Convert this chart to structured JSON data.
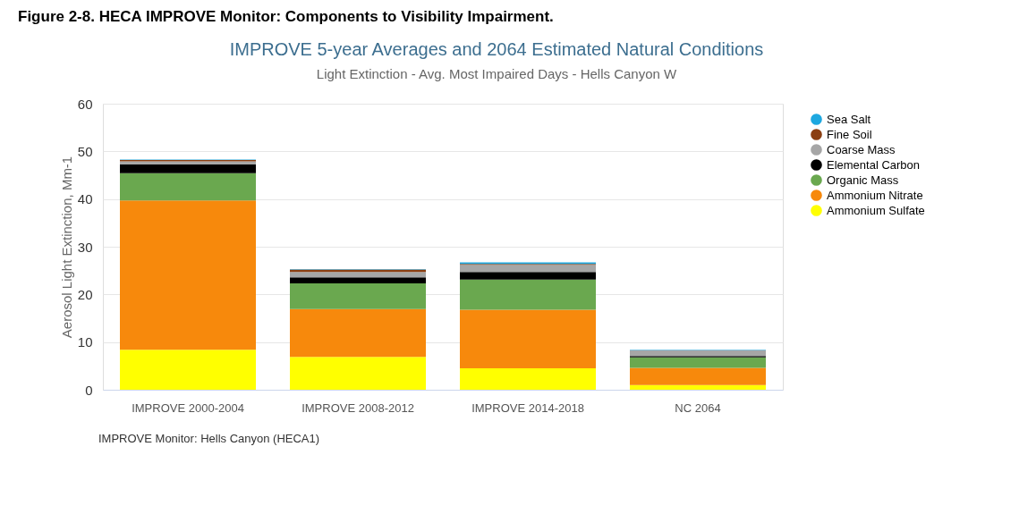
{
  "chart_data": {
    "type": "bar",
    "title": "IMPROVE 5-year Averages and 2064 Estimated Natural Conditions",
    "subtitle": "Light Extinction - Avg. Most Impaired Days - Hells Canyon W",
    "ylabel": "Aerosol Light Extinction, Mm-1",
    "categories": [
      "IMPROVE 2000-2004",
      "IMPROVE 2008-2012",
      "IMPROVE 2014-2018",
      "NC 2064"
    ],
    "stacked": true,
    "series": [
      {
        "name": "Ammonium Sulfate",
        "color": "#ffff00",
        "values": [
          8.4,
          6.9,
          4.5,
          1.0
        ]
      },
      {
        "name": "Ammonium Nitrate",
        "color": "#f7890c",
        "values": [
          31.3,
          10.0,
          12.3,
          3.6
        ]
      },
      {
        "name": "Organic Mass",
        "color": "#6aa84f",
        "values": [
          5.7,
          5.4,
          6.3,
          2.2
        ]
      },
      {
        "name": "Elemental Carbon",
        "color": "#000000",
        "values": [
          1.9,
          1.3,
          1.6,
          0.3
        ]
      },
      {
        "name": "Coarse Mass",
        "color": "#a6a6a6",
        "values": [
          0.6,
          1.1,
          1.5,
          1.2
        ]
      },
      {
        "name": "Fine Soil",
        "color": "#8b3f12",
        "values": [
          0.3,
          0.5,
          0.2,
          null
        ]
      },
      {
        "name": "Sea Salt",
        "color": "#1ea8e0",
        "values": [
          0.1,
          0.1,
          0.3,
          0.1
        ]
      }
    ],
    "ylim": [
      0,
      60
    ],
    "yticks": [
      0,
      10,
      20,
      30,
      40,
      50,
      60
    ],
    "grid": "y",
    "legend": "right",
    "annotations": [
      "Figure 2-8. HECA IMPROVE Monitor: Components to Visibility Impairment.",
      "IMPROVE Monitor: Hells Canyon (HECA1)"
    ]
  }
}
